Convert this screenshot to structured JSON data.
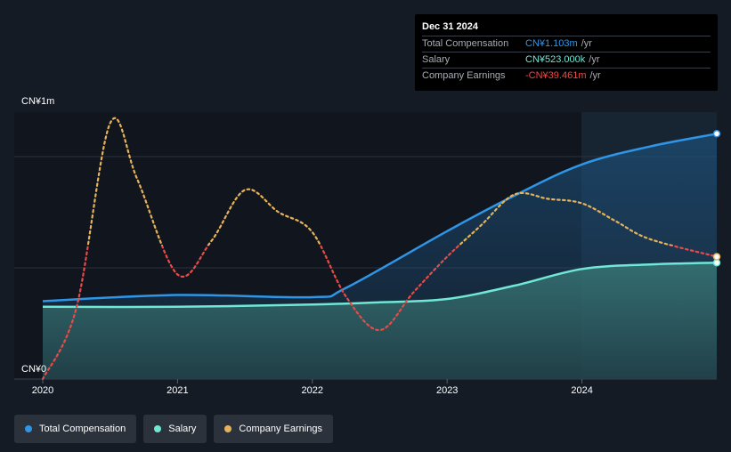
{
  "colors": {
    "total_compensation": "#2f95e6",
    "salary": "#71e7d6",
    "company_earnings_positive": "#e6b35a",
    "company_earnings_negative": "#e84b48",
    "background": "#151b24"
  },
  "tooltip": {
    "date": "Dec 31 2024",
    "rows": [
      {
        "label": "Total Compensation",
        "value": "CN¥1.103m",
        "unit": "/yr"
      },
      {
        "label": "Salary",
        "value": "CN¥523.000k",
        "unit": "/yr"
      },
      {
        "label": "Company Earnings",
        "value": "-CN¥39.461m",
        "unit": "/yr"
      }
    ]
  },
  "legend": {
    "items": [
      {
        "label": "Total Compensation"
      },
      {
        "label": "Salary"
      },
      {
        "label": "Company Earnings"
      }
    ]
  },
  "chart_data": {
    "type": "area",
    "x_ticks": [
      "2020",
      "2021",
      "2022",
      "2023",
      "2024"
    ],
    "x_tick_values": [
      2020,
      2021,
      2022,
      2023,
      2024
    ],
    "xlim": [
      2020,
      2025
    ],
    "y_ticks": [
      "CN¥1m",
      "CN¥0"
    ],
    "ylim": [
      0,
      1200000
    ],
    "grid": true,
    "legend_position": "bottom-left",
    "series": [
      {
        "name": "Total Compensation",
        "style": "area-line",
        "points": [
          [
            2020.0,
            350000
          ],
          [
            2021.0,
            378000
          ],
          [
            2022.0,
            368000
          ],
          [
            2022.25,
            410000
          ],
          [
            2023.0,
            665000
          ],
          [
            2023.5,
            825000
          ],
          [
            2024.0,
            965000
          ],
          [
            2024.5,
            1045000
          ],
          [
            2025.0,
            1103000
          ]
        ]
      },
      {
        "name": "Salary",
        "style": "area-line",
        "points": [
          [
            2020.0,
            325000
          ],
          [
            2021.0,
            325000
          ],
          [
            2022.0,
            335000
          ],
          [
            2022.5,
            345000
          ],
          [
            2023.0,
            360000
          ],
          [
            2023.5,
            420000
          ],
          [
            2024.0,
            495000
          ],
          [
            2024.5,
            515000
          ],
          [
            2025.0,
            523000
          ]
        ]
      },
      {
        "name": "Company Earnings",
        "style": "dotted",
        "scale_note": "Company earnings shown on an independent scale",
        "points": [
          [
            2020.0,
            0.0
          ],
          [
            2020.25,
            0.32
          ],
          [
            2020.5,
            1.15
          ],
          [
            2020.7,
            0.9
          ],
          [
            2021.0,
            0.47
          ],
          [
            2021.25,
            0.62
          ],
          [
            2021.5,
            0.85
          ],
          [
            2021.75,
            0.75
          ],
          [
            2022.0,
            0.66
          ],
          [
            2022.25,
            0.37
          ],
          [
            2022.5,
            0.22
          ],
          [
            2022.75,
            0.39
          ],
          [
            2023.0,
            0.55
          ],
          [
            2023.25,
            0.69
          ],
          [
            2023.5,
            0.83
          ],
          [
            2023.75,
            0.81
          ],
          [
            2024.0,
            0.79
          ],
          [
            2024.25,
            0.71
          ],
          [
            2024.5,
            0.63
          ],
          [
            2025.0,
            0.55
          ]
        ],
        "final_value": "-CN¥39.461m"
      }
    ]
  }
}
